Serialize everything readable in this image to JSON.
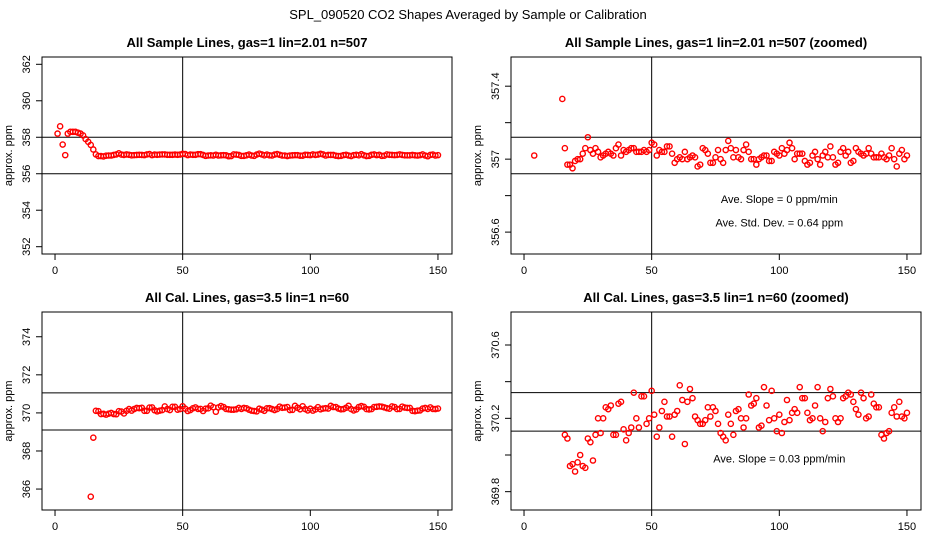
{
  "title": "SPL_090520  CO2 Shapes Averaged by Sample or Calibration",
  "colors": {
    "points": "#ff0000",
    "axes": "#000000"
  },
  "chart_data": [
    {
      "type": "scatter",
      "title": "All Sample Lines, gas=1 lin=2.01 n=507",
      "xlabel": "",
      "ylabel": "approx. ppm",
      "xlim": [
        -5.1,
        155.5
      ],
      "ylim": [
        351.6,
        362.4
      ],
      "xticks": [
        0,
        50,
        100,
        150
      ],
      "yticks": [
        352,
        354,
        356,
        358,
        360,
        362
      ],
      "vline": 50,
      "hlines": [
        356,
        358
      ],
      "series": "sample",
      "annotations": []
    },
    {
      "type": "scatter",
      "title": "All Sample Lines, gas=1 lin=2.01 n=507 (zoomed)",
      "xlabel": "",
      "ylabel": "approx. ppm",
      "xlim": [
        -5.1,
        155.5
      ],
      "ylim": [
        356.48,
        357.56
      ],
      "xticks": [
        0,
        50,
        100,
        150
      ],
      "yticks": [
        356.6,
        357.0,
        357.4
      ],
      "yminor": [
        356.8,
        357.2
      ],
      "vline": 50,
      "hlines": [
        356.92,
        357.12
      ],
      "series": "sample",
      "annotations": [
        {
          "text": "Ave. Slope =  0  ppm/min",
          "x": 100,
          "y": 356.76
        },
        {
          "text": "Ave. Std. Dev. =  0.64  ppm",
          "x": 100,
          "y": 356.63
        }
      ]
    },
    {
      "type": "scatter",
      "title": "All Cal. Lines, gas=3.5 lin=1 n=60",
      "xlabel": "",
      "ylabel": "approx. ppm",
      "xlim": [
        -5.1,
        155.5
      ],
      "ylim": [
        364.9,
        375.3
      ],
      "xticks": [
        0,
        50,
        100,
        150
      ],
      "yticks": [
        366,
        368,
        370,
        372,
        374
      ],
      "vline": 50,
      "hlines": [
        369.1,
        371.05
      ],
      "series": "cal",
      "annotations": []
    },
    {
      "type": "scatter",
      "title": "All Cal. Lines, gas=3.5 lin=1 n=60 (zoomed)",
      "xlabel": "",
      "ylabel": "approx. ppm",
      "xlim": [
        -5.1,
        155.5
      ],
      "ylim": [
        369.7,
        370.78
      ],
      "xticks": [
        0,
        50,
        100,
        150
      ],
      "yticks": [
        369.8,
        370.2,
        370.6
      ],
      "yminor": [
        370.0,
        370.4
      ],
      "vline": 50,
      "hlines": [
        370.13,
        370.34
      ],
      "series": "cal",
      "annotations": [
        {
          "text": "Ave. Slope =  0.03  ppm/min",
          "x": 100,
          "y": 369.96
        }
      ]
    }
  ],
  "series_data": {
    "sample": {
      "x_start": 1,
      "values": [
        358.2,
        358.6,
        357.6,
        357.02,
        358.2,
        358.3,
        358.3,
        358.3,
        358.25,
        358.2,
        358.1,
        357.9,
        357.75,
        357.58,
        357.33,
        357.06,
        356.97,
        356.97,
        356.95,
        356.99,
        357.0,
        357.0,
        357.03,
        357.06,
        357.12,
        357.05,
        357.03,
        357.06,
        357.04,
        357.01,
        357.02,
        357.03,
        357.04,
        357.03,
        357.02,
        357.06,
        357.08,
        357.02,
        357.05,
        357.04,
        357.05,
        357.06,
        357.06,
        357.04,
        357.04,
        357.04,
        357.05,
        357.04,
        357.05,
        357.09,
        357.08,
        357.02,
        357.05,
        357.04,
        357.04,
        357.07,
        357.07,
        357.03,
        356.98,
        357.0,
        357.01,
        357.0,
        357.04,
        357.0,
        357.01,
        357.02,
        357.01,
        356.96,
        356.97,
        357.06,
        357.05,
        357.03,
        356.98,
        356.98,
        357.01,
        357.05,
        357.0,
        356.98,
        357.05,
        357.1,
        357.06,
        357.01,
        357.05,
        357.01,
        357.0,
        357.05,
        357.08,
        357.04,
        357.0,
        357.0,
        356.97,
        357.0,
        357.01,
        357.02,
        357.02,
        356.99,
        356.99,
        357.04,
        357.03,
        357.02,
        357.06,
        357.03,
        357.05,
        357.09,
        357.06,
        357.0,
        357.03,
        357.03,
        357.03,
        356.99,
        356.97,
        356.98,
        357.02,
        357.04,
        357.0,
        356.97,
        357.02,
        357.04,
        357.01,
        357.07,
        357.01,
        356.97,
        356.98,
        357.04,
        357.06,
        357.02,
        357.04,
        356.98,
        356.99,
        357.06,
        357.04,
        357.03,
        357.02,
        357.03,
        357.06,
        357.03,
        357.01,
        357.01,
        357.01,
        357.03,
        357.01,
        357.0,
        357.02,
        357.06,
        357.0,
        356.96,
        357.03,
        357.05,
        357.0,
        357.02
      ]
    },
    "cal": {
      "x_start": 14,
      "values": [
        365.6,
        368.7,
        370.11,
        370.09,
        369.94,
        369.95,
        369.91,
        369.96,
        370.0,
        369.94,
        369.93,
        370.09,
        370.07,
        369.97,
        370.11,
        370.2,
        370.12,
        370.2,
        370.26,
        370.25,
        370.27,
        370.11,
        370.11,
        370.28,
        370.29,
        370.14,
        370.08,
        370.12,
        370.15,
        370.34,
        370.2,
        370.15,
        370.32,
        370.32,
        370.17,
        370.2,
        370.35,
        370.22,
        370.1,
        370.15,
        370.24,
        370.29,
        370.21,
        370.21,
        370.1,
        370.22,
        370.24,
        370.38,
        370.3,
        370.06,
        370.29,
        370.36,
        370.31,
        370.21,
        370.19,
        370.17,
        370.17,
        370.19,
        370.26,
        370.21,
        370.26,
        370.24,
        370.17,
        370.12,
        370.1,
        370.08,
        370.22,
        370.17,
        370.11,
        370.24,
        370.25,
        370.2,
        370.15,
        370.2,
        370.33,
        370.27,
        370.28,
        370.31,
        370.15,
        370.16,
        370.37,
        370.27,
        370.19,
        370.35,
        370.2,
        370.13,
        370.22,
        370.12,
        370.18,
        370.3,
        370.19,
        370.23,
        370.25,
        370.23,
        370.37,
        370.31,
        370.31,
        370.23,
        370.19,
        370.2,
        370.27,
        370.37,
        370.2,
        370.13,
        370.18,
        370.31,
        370.36,
        370.32,
        370.2,
        370.18,
        370.2,
        370.31,
        370.32,
        370.34,
        370.33,
        370.29,
        370.25,
        370.22,
        370.34,
        370.31,
        370.2,
        370.21,
        370.33,
        370.28,
        370.26,
        370.26,
        370.11,
        370.09,
        370.12,
        370.13,
        370.23,
        370.26,
        370.21,
        370.29,
        370.21,
        370.2,
        370.23
      ]
    }
  }
}
